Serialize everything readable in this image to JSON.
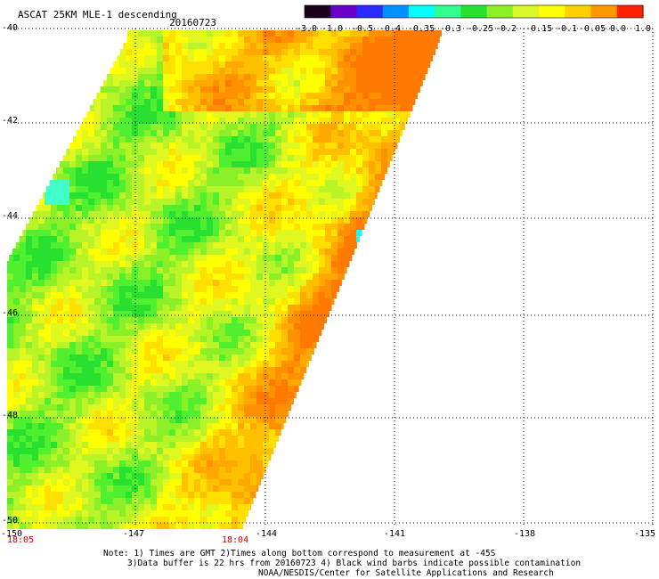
{
  "header": {
    "title": "ASCAT 25KM MLE-1 descending",
    "date": "20160723"
  },
  "colorbar": {
    "labels": [
      "-3.0",
      "-1.0",
      "-0.5",
      "-0.4",
      "-0.35",
      "-0.3",
      "-0.25",
      "-0.2",
      "-0.15",
      "-0.1",
      "-0.05",
      "0.0",
      "1.0"
    ],
    "colors": [
      "#1a001a",
      "#6a00c8",
      "#2a2aff",
      "#0090ff",
      "#00ffff",
      "#30ff90",
      "#28e030",
      "#8cf028",
      "#d8f828",
      "#ffff00",
      "#ffd000",
      "#ff9800",
      "#ff2000"
    ]
  },
  "map": {
    "lat_ticks": [
      "-40",
      "-42",
      "-44",
      "-46",
      "-48",
      "-50"
    ],
    "lon_ticks": [
      "-150",
      "-147",
      "-144",
      "-141",
      "-138",
      "-135"
    ],
    "times": [
      "18:05",
      "18:04"
    ]
  },
  "footer": {
    "note1": "Note: 1) Times are GMT 2)Times along bottom correspond to measurement at -45S",
    "note2": "3)Data buffer is 22 hrs from 20160723 4) Black wind barbs indicate possible contamination",
    "credit": "NOAA/NESDIS/Center for Satellite Applications and Research"
  }
}
